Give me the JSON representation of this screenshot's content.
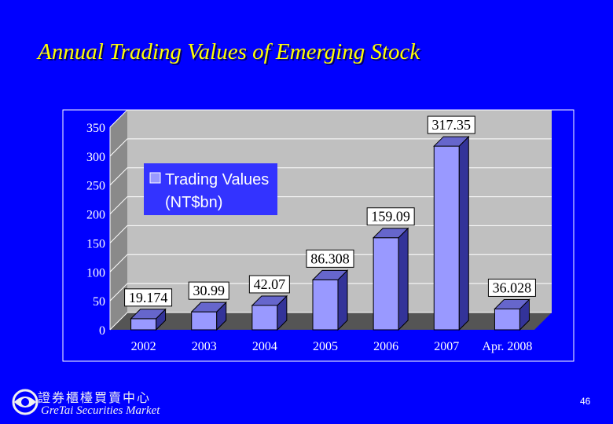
{
  "slide": {
    "title": "Annual Trading Values of Emerging Stock",
    "page_number": "46",
    "logo_cn": "證券櫃檯買賣中心",
    "logo_en": "GreTai Securities Market"
  },
  "colors": {
    "background": "#0000ff",
    "title": "#ffff00",
    "bar_front": "#9999ff",
    "bar_side": "#333399",
    "bar_top": "#6666cc",
    "plot_wall": "#c0c0c0",
    "frame": "#ffffff",
    "legend_bg": "#3333ff"
  },
  "chart_data": {
    "type": "bar",
    "style": "3d",
    "categories": [
      "2002",
      "2003",
      "2004",
      "2005",
      "2006",
      "2007",
      "Apr. 2008"
    ],
    "series": [
      {
        "name": "Trading Values (NT$bn)",
        "values": [
          19.174,
          30.99,
          42.07,
          86.308,
          159.09,
          317.35,
          36.028
        ]
      }
    ],
    "data_labels": [
      "19.174",
      "30.99",
      "42.07",
      "86.308",
      "159.09",
      "317.35",
      "36.028"
    ],
    "ylim": [
      0,
      350
    ],
    "yticks": [
      "0",
      "50",
      "100",
      "150",
      "200",
      "250",
      "300",
      "350"
    ],
    "grid": true,
    "legend": {
      "position": "top-left",
      "lines": [
        "Trading Values",
        "(NT$bn)"
      ]
    }
  }
}
